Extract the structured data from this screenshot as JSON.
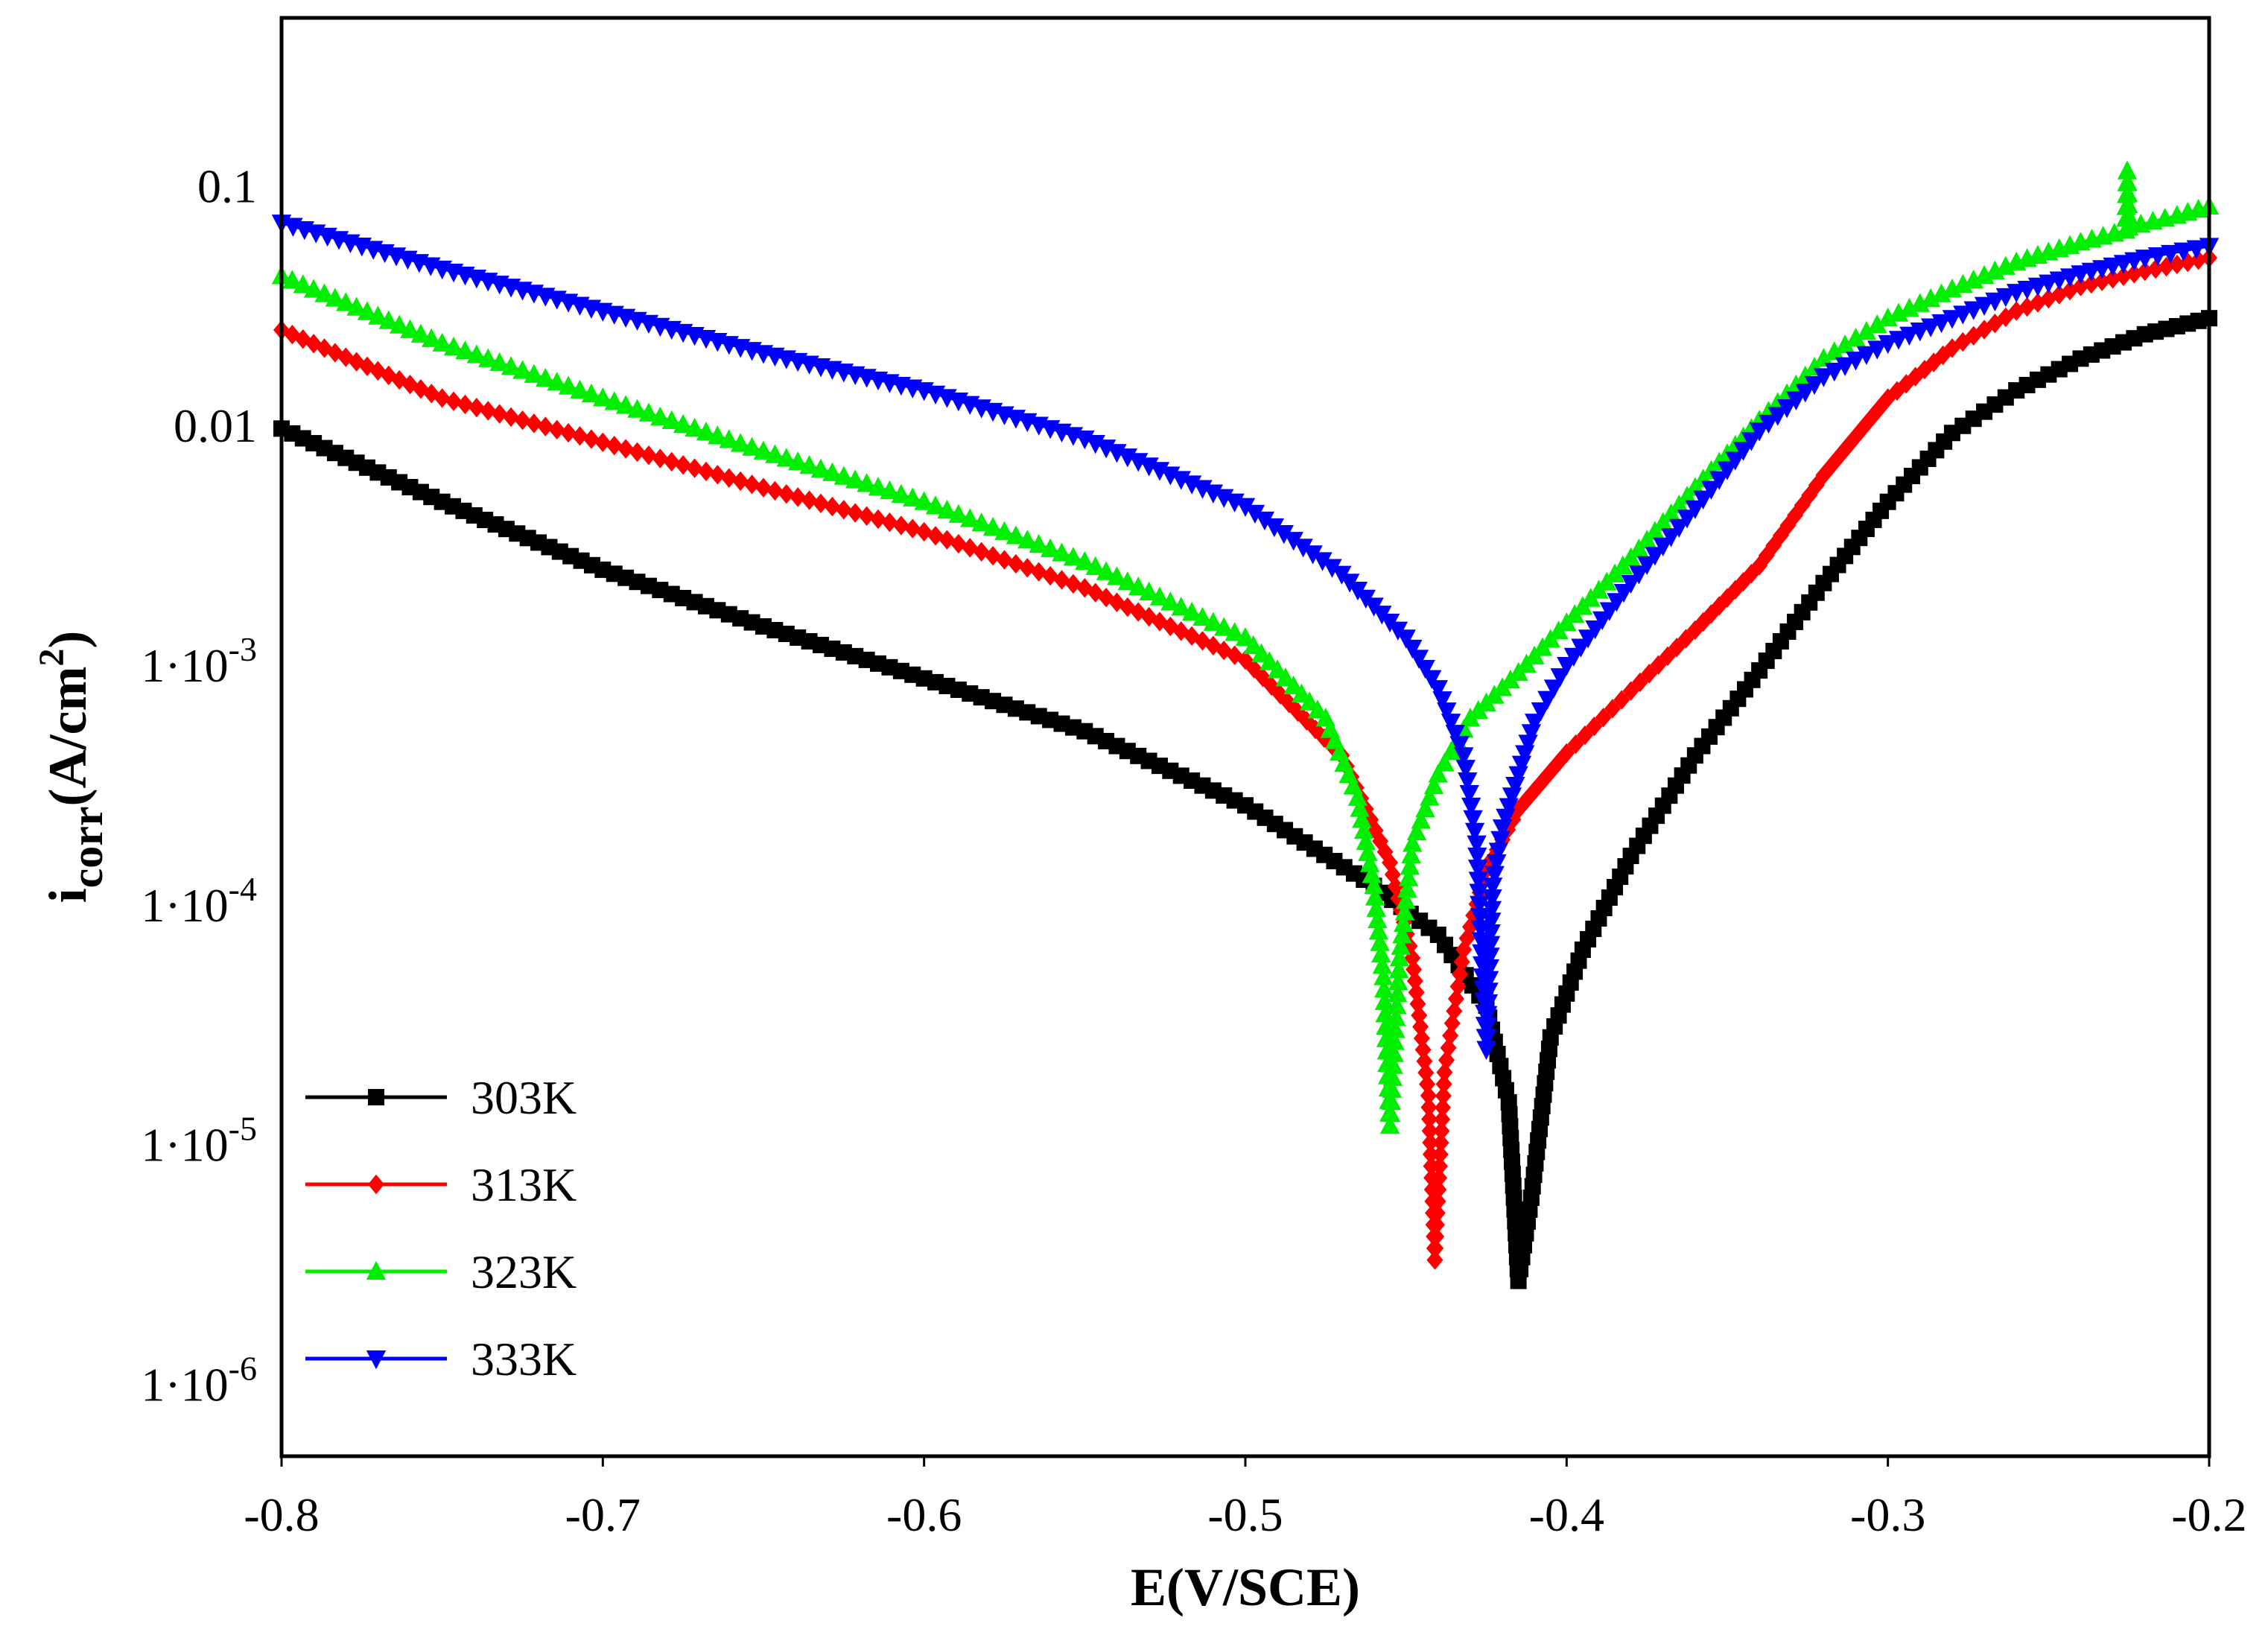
{
  "chart_data": {
    "type": "line",
    "title": "",
    "xlabel": "E(V/SCE)",
    "ylabel": {
      "main": "i",
      "sub": "corr",
      "unit": "(A/cm",
      "sup": "2",
      "close": ")"
    },
    "xlim": [
      -0.8,
      -0.2
    ],
    "ylim_log10": [
      -6.3,
      -0.3
    ],
    "y_scale": "log",
    "grid": false,
    "legend_position": "bottom-left",
    "x_ticks": [
      {
        "value": -0.8,
        "label": "-0.8"
      },
      {
        "value": -0.7,
        "label": "-0.7"
      },
      {
        "value": -0.6,
        "label": "-0.6"
      },
      {
        "value": -0.5,
        "label": "-0.5"
      },
      {
        "value": -0.4,
        "label": "-0.4"
      },
      {
        "value": -0.3,
        "label": "-0.3"
      },
      {
        "value": -0.2,
        "label": "-0.2"
      }
    ],
    "y_ticks": [
      {
        "log": -1,
        "base": "0.1",
        "exp": ""
      },
      {
        "log": -2,
        "base": "0.01",
        "exp": ""
      },
      {
        "log": -3,
        "base": "1·10",
        "exp": "-3"
      },
      {
        "log": -4,
        "base": "1·10",
        "exp": "-4"
      },
      {
        "log": -5,
        "base": "1·10",
        "exp": "-5"
      },
      {
        "log": -6,
        "base": "1·10",
        "exp": "-6"
      }
    ],
    "series": [
      {
        "name": "303K",
        "color": "#000000",
        "marker": "square",
        "points": [
          [
            -0.8,
            0.0097
          ],
          [
            -0.75,
            0.0048
          ],
          [
            -0.7,
            0.0025
          ],
          [
            -0.65,
            0.00145
          ],
          [
            -0.6,
            0.00088
          ],
          [
            -0.55,
            0.00053
          ],
          [
            -0.5,
            0.00026
          ],
          [
            -0.46,
            0.00012
          ],
          [
            -0.44,
            7.5e-05
          ],
          [
            -0.425,
            3.8e-05
          ],
          [
            -0.418,
            1.5e-05
          ],
          [
            -0.415,
            2.7e-06
          ],
          [
            -0.411,
            6e-06
          ],
          [
            -0.405,
            2.8e-05
          ],
          [
            -0.395,
            6.5e-05
          ],
          [
            -0.38,
            0.00016
          ],
          [
            -0.36,
            0.00042
          ],
          [
            -0.34,
            0.00095
          ],
          [
            -0.32,
            0.0022
          ],
          [
            -0.3,
            0.0048
          ],
          [
            -0.28,
            0.0093
          ],
          [
            -0.26,
            0.014
          ],
          [
            -0.24,
            0.019
          ],
          [
            -0.22,
            0.024
          ],
          [
            -0.2,
            0.028
          ]
        ]
      },
      {
        "name": "313K",
        "color": "#ff0000",
        "marker": "diamond",
        "points": [
          [
            -0.8,
            0.025
          ],
          [
            -0.75,
            0.013
          ],
          [
            -0.7,
            0.0085
          ],
          [
            -0.65,
            0.0055
          ],
          [
            -0.6,
            0.0036
          ],
          [
            -0.55,
            0.0021
          ],
          [
            -0.5,
            0.00105
          ],
          [
            -0.47,
            0.00042
          ],
          [
            -0.455,
            0.00015
          ],
          [
            -0.448,
            6e-05
          ],
          [
            -0.443,
            1.6e-05
          ],
          [
            -0.441,
            3.3e-06
          ],
          [
            -0.438,
            2e-05
          ],
          [
            -0.432,
            6.5e-05
          ],
          [
            -0.425,
            0.00014
          ],
          [
            -0.415,
            0.00025
          ],
          [
            -0.4,
            0.00043
          ],
          [
            -0.38,
            0.00078
          ],
          [
            -0.36,
            0.0014
          ],
          [
            -0.34,
            0.0026
          ],
          [
            -0.32,
            0.0062
          ],
          [
            -0.3,
            0.013
          ],
          [
            -0.28,
            0.021
          ],
          [
            -0.26,
            0.03
          ],
          [
            -0.24,
            0.038
          ],
          [
            -0.22,
            0.044
          ],
          [
            -0.2,
            0.05
          ]
        ]
      },
      {
        "name": "323K",
        "color": "#00ee00",
        "marker": "triangle-up",
        "points": [
          [
            -0.8,
            0.042
          ],
          [
            -0.75,
            0.022
          ],
          [
            -0.7,
            0.013
          ],
          [
            -0.65,
            0.0078
          ],
          [
            -0.6,
            0.0048
          ],
          [
            -0.55,
            0.0027
          ],
          [
            -0.5,
            0.0013
          ],
          [
            -0.475,
            0.0006
          ],
          [
            -0.465,
            0.00028
          ],
          [
            -0.46,
            0.00012
          ],
          [
            -0.457,
            5e-05
          ],
          [
            -0.455,
            1.2e-05
          ],
          [
            -0.452,
            6e-05
          ],
          [
            -0.448,
            0.00018
          ],
          [
            -0.44,
            0.00035
          ],
          [
            -0.43,
            0.0006
          ],
          [
            -0.415,
            0.00093
          ],
          [
            -0.4,
            0.0015
          ],
          [
            -0.38,
            0.0028
          ],
          [
            -0.36,
            0.0055
          ],
          [
            -0.34,
            0.0105
          ],
          [
            -0.32,
            0.019
          ],
          [
            -0.3,
            0.028
          ],
          [
            -0.28,
            0.037
          ],
          [
            -0.26,
            0.048
          ],
          [
            -0.24,
            0.058
          ],
          [
            -0.226,
            0.065
          ],
          [
            -0.2255,
            0.115
          ],
          [
            -0.225,
            0.067
          ],
          [
            -0.21,
            0.075
          ],
          [
            -0.2,
            0.082
          ]
        ]
      },
      {
        "name": "333K",
        "color": "#0000ff",
        "marker": "triangle-down",
        "points": [
          [
            -0.8,
            0.07
          ],
          [
            -0.75,
            0.045
          ],
          [
            -0.7,
            0.03
          ],
          [
            -0.65,
            0.02
          ],
          [
            -0.6,
            0.014
          ],
          [
            -0.55,
            0.0088
          ],
          [
            -0.5,
            0.0046
          ],
          [
            -0.47,
            0.0024
          ],
          [
            -0.45,
            0.0013
          ],
          [
            -0.44,
            0.0008
          ],
          [
            -0.432,
            0.00042
          ],
          [
            -0.428,
            0.00018
          ],
          [
            -0.425,
            2.5e-05
          ],
          [
            -0.423,
            0.00012
          ],
          [
            -0.42,
            0.00021
          ],
          [
            -0.415,
            0.00035
          ],
          [
            -0.41,
            0.00058
          ],
          [
            -0.4,
            0.001
          ],
          [
            -0.38,
            0.0022
          ],
          [
            -0.36,
            0.0045
          ],
          [
            -0.34,
            0.0095
          ],
          [
            -0.32,
            0.016
          ],
          [
            -0.3,
            0.022
          ],
          [
            -0.28,
            0.028
          ],
          [
            -0.26,
            0.036
          ],
          [
            -0.24,
            0.043
          ],
          [
            -0.22,
            0.05
          ],
          [
            -0.2,
            0.056
          ]
        ]
      }
    ]
  }
}
